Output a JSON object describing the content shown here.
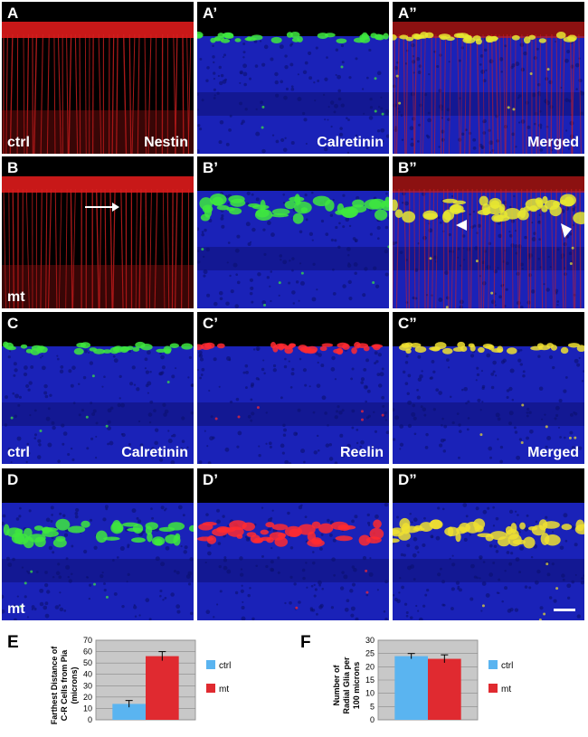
{
  "panels": [
    {
      "label": "A",
      "condition": "ctrl",
      "stain": "Nestin",
      "scheme": "nestin"
    },
    {
      "label": "A’",
      "condition": "",
      "stain": "Calretinin",
      "scheme": "calretinin_thin"
    },
    {
      "label": "A”",
      "condition": "",
      "stain": "Merged",
      "scheme": "merged_thin"
    },
    {
      "label": "B",
      "condition": "mt",
      "stain": "",
      "scheme": "nestin_mt"
    },
    {
      "label": "B’",
      "condition": "",
      "stain": "",
      "scheme": "calretinin_mt"
    },
    {
      "label": "B”",
      "condition": "",
      "stain": "",
      "scheme": "merged_mt"
    },
    {
      "label": "C",
      "condition": "ctrl",
      "stain": "Calretinin",
      "scheme": "blue_green"
    },
    {
      "label": "C’",
      "condition": "",
      "stain": "Reelin",
      "scheme": "blue_red"
    },
    {
      "label": "C”",
      "condition": "",
      "stain": "Merged",
      "scheme": "blue_yellow"
    },
    {
      "label": "D",
      "condition": "mt",
      "stain": "",
      "scheme": "blue_green_thick"
    },
    {
      "label": "D’",
      "condition": "",
      "stain": "",
      "scheme": "blue_red_thick"
    },
    {
      "label": "D”",
      "condition": "",
      "stain": "",
      "scheme": "blue_yellow_thick"
    }
  ],
  "chart_data": [
    {
      "type": "bar",
      "panel_label": "E",
      "ylabel": "Farthest Distance of C-R Cells from Pia (microns)",
      "ylabel_lines": [
        "Farthest Distance of",
        "C-R Cells from Pia",
        "(microns)"
      ],
      "ylim": [
        0,
        70
      ],
      "yticks": [
        0,
        10,
        20,
        30,
        40,
        50,
        60,
        70
      ],
      "grid": true,
      "legend_position": "right",
      "series": [
        {
          "name": "ctrl",
          "color": "#5ab4f0",
          "value": 14,
          "error": 3
        },
        {
          "name": "mt",
          "color": "#e02a30",
          "value": 56,
          "error": 4
        }
      ]
    },
    {
      "type": "bar",
      "panel_label": "F",
      "ylabel": "Number of Radial Glia per 100 microns",
      "ylabel_lines": [
        "Number of",
        "Radial Glia per",
        "100 microns"
      ],
      "ylim": [
        0,
        30
      ],
      "yticks": [
        0,
        5,
        10,
        15,
        20,
        25,
        30
      ],
      "grid": true,
      "legend_position": "right",
      "series": [
        {
          "name": "ctrl",
          "color": "#5ab4f0",
          "value": 24,
          "error": 1
        },
        {
          "name": "mt",
          "color": "#e02a30",
          "value": 23,
          "error": 1.5
        }
      ]
    }
  ]
}
